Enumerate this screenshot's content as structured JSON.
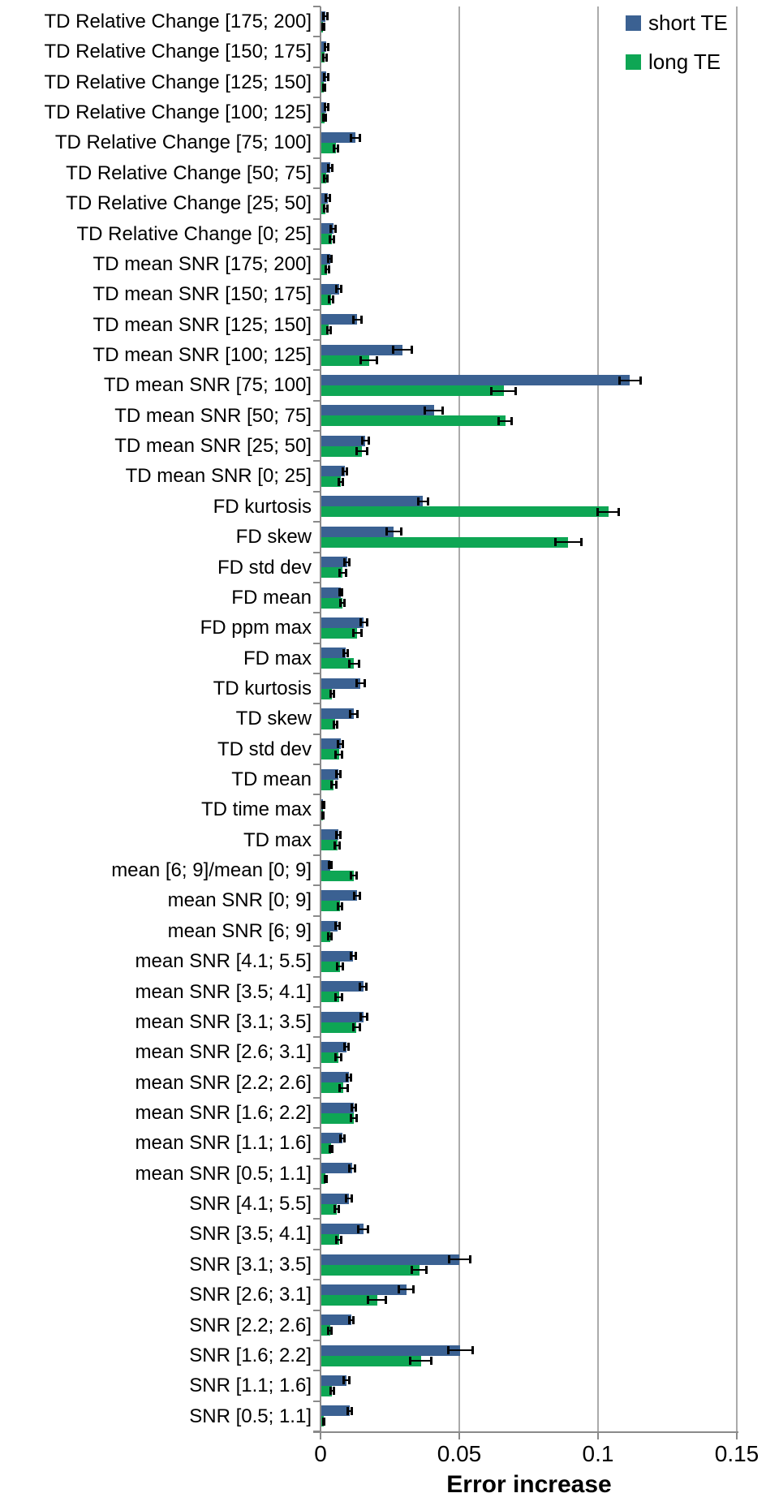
{
  "chart_data": {
    "type": "bar",
    "orientation": "horizontal",
    "title": "",
    "xlabel": "Error increase",
    "ylabel": "",
    "xlim": [
      0,
      0.15
    ],
    "x_tick_values": [
      0,
      0.05,
      0.1,
      0.15
    ],
    "x_tick_labels": [
      "0",
      "0.05",
      "0.1",
      "0.15"
    ],
    "grid": "vertical-gridlines-on",
    "legend_position": "top-right",
    "error_bars": true,
    "categories": [
      "TD Relative Change [175; 200]",
      "TD Relative Change [150; 175]",
      "TD Relative Change [125; 150]",
      "TD Relative Change [100; 125]",
      "TD Relative Change [75; 100]",
      "TD Relative Change [50; 75]",
      "TD Relative Change [25; 50]",
      "TD Relative Change [0; 25]",
      "TD mean SNR [175; 200]",
      "TD mean SNR [150; 175]",
      "TD mean SNR [125; 150]",
      "TD mean SNR [100; 125]",
      "TD mean SNR [75; 100]",
      "TD mean SNR [50; 75]",
      "TD mean SNR [25; 50]",
      "TD mean SNR [0; 25]",
      "FD kurtosis",
      "FD skew",
      "FD std dev",
      "FD mean",
      "FD ppm max",
      "FD max",
      "TD kurtosis",
      "TD skew",
      "TD std dev",
      "TD mean",
      "TD time max",
      "TD max",
      "mean [6; 9]/mean [0; 9]",
      "mean SNR [0; 9]",
      "mean SNR [6; 9]",
      "mean SNR [4.1; 5.5]",
      "mean SNR [3.5; 4.1]",
      "mean SNR [3.1; 3.5]",
      "mean SNR [2.6; 3.1]",
      "mean SNR [2.2; 2.6]",
      "mean SNR [1.6; 2.2]",
      "mean SNR [1.1; 1.6]",
      "mean SNR [0.5; 1.1]",
      "SNR [4.1; 5.5]",
      "SNR [3.5; 4.1]",
      "SNR [3.1; 3.5]",
      "SNR [2.6; 3.1]",
      "SNR [2.2; 2.6]",
      "SNR [1.6; 2.2]",
      "SNR [1.1; 1.6]",
      "SNR [0.5; 1.1]"
    ],
    "series": [
      {
        "name": "short TE",
        "color": "#3B6192",
        "values": [
          0.0018,
          0.0021,
          0.002,
          0.0021,
          0.0126,
          0.0034,
          0.0026,
          0.0046,
          0.0034,
          0.0066,
          0.0132,
          0.0294,
          0.1115,
          0.0408,
          0.0162,
          0.0088,
          0.0369,
          0.0264,
          0.0096,
          0.0072,
          0.0156,
          0.009,
          0.0144,
          0.012,
          0.0072,
          0.0064,
          0.001,
          0.0064,
          0.0036,
          0.0132,
          0.0062,
          0.0118,
          0.0154,
          0.0156,
          0.0094,
          0.0102,
          0.012,
          0.008,
          0.0114,
          0.0102,
          0.0154,
          0.0501,
          0.0309,
          0.011,
          0.0504,
          0.0094,
          0.0106
        ],
        "errors": [
          0.0008,
          0.0007,
          0.0008,
          0.0007,
          0.0018,
          0.0009,
          0.0009,
          0.0011,
          0.0008,
          0.0011,
          0.0016,
          0.0035,
          0.004,
          0.0033,
          0.0013,
          0.0009,
          0.0019,
          0.0027,
          0.001,
          0.0006,
          0.0013,
          0.0009,
          0.0016,
          0.0015,
          0.0011,
          0.0008,
          0.0004,
          0.0009,
          0.0006,
          0.0011,
          0.0009,
          0.0011,
          0.0013,
          0.0014,
          0.0009,
          0.0009,
          0.0009,
          0.0009,
          0.0011,
          0.0011,
          0.0019,
          0.004,
          0.0028,
          0.0009,
          0.0046,
          0.0011,
          0.0009
        ]
      },
      {
        "name": "long TE",
        "color": "#0EA654",
        "values": [
          0.001,
          0.0016,
          0.0013,
          0.0015,
          0.0056,
          0.002,
          0.0018,
          0.0042,
          0.0024,
          0.0038,
          0.003,
          0.0174,
          0.066,
          0.0666,
          0.015,
          0.0072,
          0.1037,
          0.0893,
          0.008,
          0.0078,
          0.0132,
          0.012,
          0.0042,
          0.0054,
          0.0066,
          0.0048,
          0.0008,
          0.006,
          0.012,
          0.007,
          0.0034,
          0.007,
          0.0066,
          0.013,
          0.0064,
          0.0082,
          0.012,
          0.0038,
          0.0018,
          0.0058,
          0.0066,
          0.0356,
          0.0204,
          0.0034,
          0.0362,
          0.0042,
          0.0012
        ],
        "errors": [
          0.0005,
          0.0006,
          0.0005,
          0.0006,
          0.0009,
          0.0007,
          0.0007,
          0.0009,
          0.0007,
          0.0008,
          0.0008,
          0.0031,
          0.0046,
          0.0025,
          0.0021,
          0.0009,
          0.004,
          0.0048,
          0.0013,
          0.0009,
          0.0016,
          0.0019,
          0.0008,
          0.0008,
          0.0013,
          0.001,
          0.0004,
          0.0009,
          0.0013,
          0.0009,
          0.0008,
          0.0011,
          0.0013,
          0.0014,
          0.0011,
          0.0016,
          0.0013,
          0.0006,
          0.0004,
          0.0009,
          0.0009,
          0.0028,
          0.0034,
          0.0007,
          0.004,
          0.0008,
          0.0004
        ]
      }
    ]
  },
  "colors": {
    "background": "#FFFFFF",
    "gridline": "#ABABAB",
    "axis": "#8A8A8A",
    "error_bar": "#000000",
    "text": "#000000"
  }
}
